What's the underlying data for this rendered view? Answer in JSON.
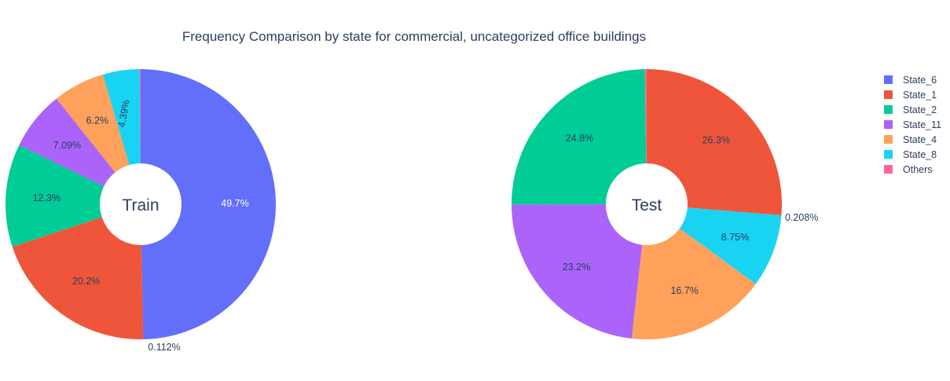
{
  "colors": {
    "State_6": "#636efa",
    "State_1": "#EF553B",
    "State_2": "#00cc96",
    "State_11": "#ab63fa",
    "State_4": "#FFA15A",
    "State_8": "#19d3f3",
    "Others": "#FF6692"
  },
  "chart_data": [
    {
      "type": "pie",
      "title": "Frequency Comparison by state for commercial, uncategorized office buildings",
      "hole_label": "Train",
      "categories": [
        "State_6",
        "State_1",
        "State_2",
        "State_11",
        "State_4",
        "State_8",
        "Others"
      ],
      "values": [
        49.7,
        20.2,
        12.3,
        7.09,
        6.2,
        4.39,
        0.112
      ],
      "labels": [
        "49.7%",
        "20.2%",
        "12.3%",
        "7.09%",
        "6.2%",
        "4.39%",
        "0.112%"
      ],
      "legend_position": "right"
    },
    {
      "type": "pie",
      "hole_label": "Test",
      "categories": [
        "State_1",
        "State_8",
        "State_4",
        "State_11",
        "State_2",
        "Others"
      ],
      "values": [
        26.3,
        8.75,
        16.7,
        23.2,
        24.8,
        0.208
      ],
      "labels": [
        "26.3%",
        "8.75%",
        "16.7%",
        "23.2%",
        "24.8%",
        "0.208%"
      ],
      "legend_position": "right"
    }
  ],
  "legend": {
    "items": [
      "State_6",
      "State_1",
      "State_2",
      "State_11",
      "State_4",
      "State_8",
      "Others"
    ]
  }
}
